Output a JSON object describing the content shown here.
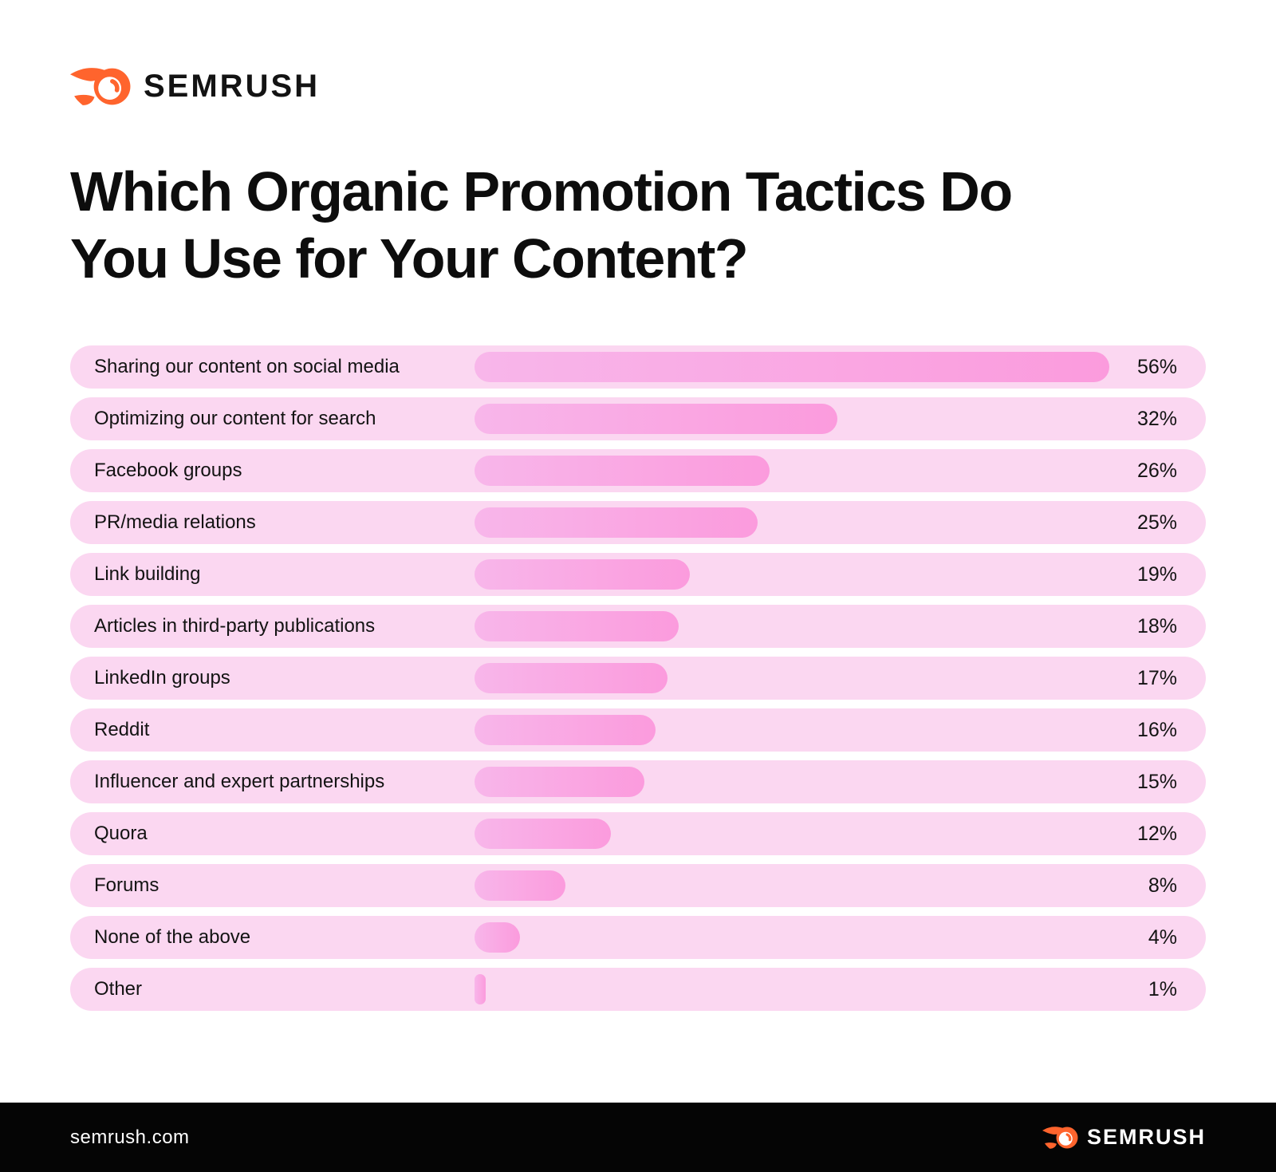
{
  "theme": {
    "background": "#FFFFFF",
    "brand_orange": "#FF642D",
    "ink": "#131313",
    "row_bg": "#FBD7F1",
    "bar_gradient_start": "#F8B6EA",
    "bar_gradient_end": "#FB9BDD",
    "footer_bg": "#050505",
    "footer_text": "#FFFFFF"
  },
  "header": {
    "logo_text": "SEMRUSH",
    "logo_icon": "semrush-flame-comet-icon"
  },
  "title": {
    "line1": "Which Organic Promotion Tactics Do",
    "line2": "You Use for Your Content?"
  },
  "chart_data": {
    "type": "bar",
    "orientation": "horizontal",
    "title": "Which Organic Promotion Tactics Do You Use for Your Content?",
    "categories": [
      "Sharing our content on social media",
      "Optimizing our content for search",
      "Facebook groups",
      "PR/media relations",
      "Link building",
      "Articles in third-party publications",
      "LinkedIn groups",
      "Reddit",
      "Influencer and expert partnerships",
      "Quora",
      "Forums",
      "None of the above",
      "Other"
    ],
    "values": [
      56,
      32,
      26,
      25,
      19,
      18,
      17,
      16,
      15,
      12,
      8,
      4,
      1
    ],
    "value_suffix": "%",
    "xlim": [
      0,
      56
    ],
    "grid": false,
    "legend": false,
    "value_labels_position": "right",
    "bar_color_gradient": [
      "#F8B6EA",
      "#FB9BDD"
    ],
    "row_background": "#FBD7F1"
  },
  "footer": {
    "site": "semrush.com",
    "logo_text": "SEMRUSH",
    "logo_icon": "semrush-flame-comet-icon"
  }
}
